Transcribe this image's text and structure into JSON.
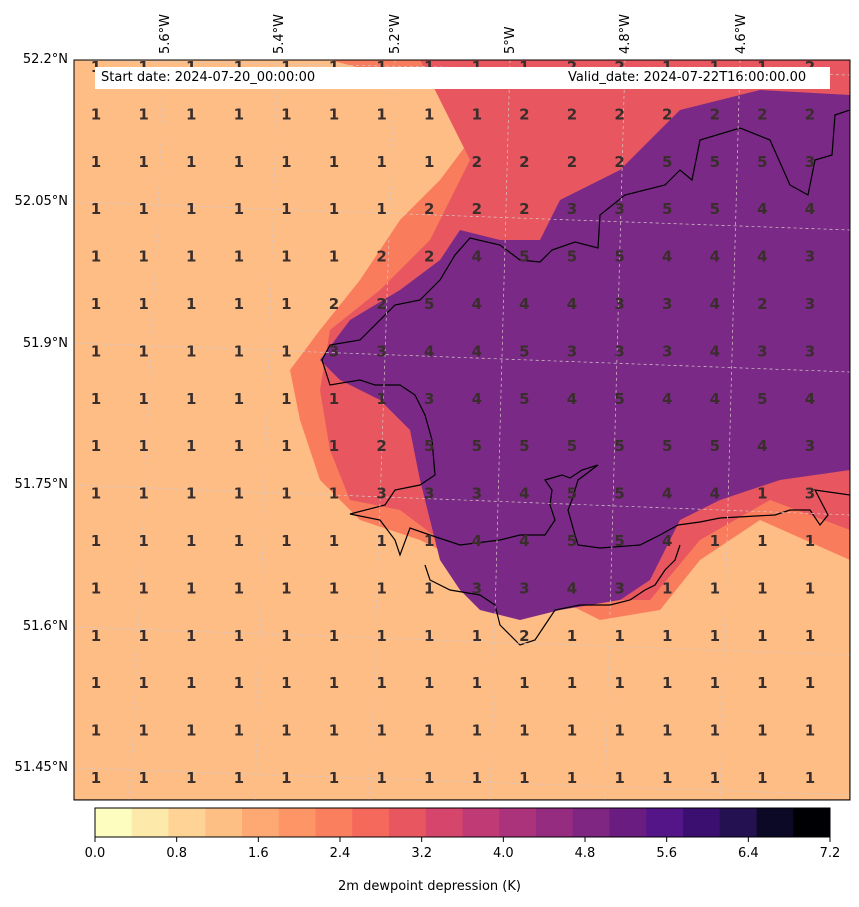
{
  "map": {
    "header": {
      "start_date": "Start date: 2024-07-20_00:00:00",
      "valid_date": "Valid_date: 2024-07-22T16:00:00.00"
    },
    "lon_labels": [
      "5.6°W",
      "5.4°W",
      "5.2°W",
      "5°W",
      "4.8°W",
      "4.6°W"
    ],
    "lat_labels": [
      "52.2°N",
      "52.05°N",
      "51.9°N",
      "51.75°N",
      "51.6°N",
      "51.45°N"
    ],
    "grid_values": [
      [
        "1",
        "1",
        "1",
        "1",
        "1",
        "1",
        "1",
        "1",
        "1",
        "1",
        "2",
        "2",
        "1",
        "1",
        "1",
        "2"
      ],
      [
        "1",
        "1",
        "1",
        "1",
        "1",
        "1",
        "1",
        "1",
        "1",
        "2",
        "2",
        "2",
        "2",
        "2",
        "2",
        "2"
      ],
      [
        "1",
        "1",
        "1",
        "1",
        "1",
        "1",
        "1",
        "1",
        "2",
        "2",
        "2",
        "2",
        "5",
        "5",
        "5",
        "3"
      ],
      [
        "1",
        "1",
        "1",
        "1",
        "1",
        "1",
        "1",
        "2",
        "2",
        "2",
        "3",
        "3",
        "5",
        "5",
        "4",
        "4"
      ],
      [
        "1",
        "1",
        "1",
        "1",
        "1",
        "1",
        "2",
        "2",
        "4",
        "5",
        "5",
        "5",
        "4",
        "4",
        "4",
        "3"
      ],
      [
        "1",
        "1",
        "1",
        "1",
        "1",
        "2",
        "2",
        "5",
        "4",
        "4",
        "4",
        "3",
        "3",
        "4",
        "2",
        "3"
      ],
      [
        "1",
        "1",
        "1",
        "1",
        "1",
        "3",
        "3",
        "4",
        "4",
        "5",
        "3",
        "3",
        "3",
        "4",
        "3",
        "3"
      ],
      [
        "1",
        "1",
        "1",
        "1",
        "1",
        "1",
        "1",
        "3",
        "4",
        "5",
        "4",
        "5",
        "4",
        "4",
        "5",
        "4"
      ],
      [
        "1",
        "1",
        "1",
        "1",
        "1",
        "1",
        "2",
        "5",
        "5",
        "5",
        "5",
        "5",
        "5",
        "5",
        "4",
        "3"
      ],
      [
        "1",
        "1",
        "1",
        "1",
        "1",
        "1",
        "3",
        "3",
        "3",
        "4",
        "5",
        "5",
        "4",
        "4",
        "1",
        "3"
      ],
      [
        "1",
        "1",
        "1",
        "1",
        "1",
        "1",
        "1",
        "1",
        "4",
        "4",
        "5",
        "5",
        "4",
        "1",
        "1",
        "1"
      ],
      [
        "1",
        "1",
        "1",
        "1",
        "1",
        "1",
        "1",
        "1",
        "3",
        "3",
        "4",
        "3",
        "1",
        "1",
        "1",
        "1"
      ],
      [
        "1",
        "1",
        "1",
        "1",
        "1",
        "1",
        "1",
        "1",
        "1",
        "2",
        "1",
        "1",
        "1",
        "1",
        "1",
        "1"
      ],
      [
        "1",
        "1",
        "1",
        "1",
        "1",
        "1",
        "1",
        "1",
        "1",
        "1",
        "1",
        "1",
        "1",
        "1",
        "1",
        "1"
      ],
      [
        "1",
        "1",
        "1",
        "1",
        "1",
        "1",
        "1",
        "1",
        "1",
        "1",
        "1",
        "1",
        "1",
        "1",
        "1",
        "1"
      ],
      [
        "1",
        "1",
        "1",
        "1",
        "1",
        "1",
        "1",
        "1",
        "1",
        "1",
        "1",
        "1",
        "1",
        "1",
        "1",
        "1"
      ]
    ],
    "colorbar": {
      "ticks": [
        "0.0",
        "0.8",
        "1.6",
        "2.4",
        "3.2",
        "4.0",
        "4.8",
        "5.6",
        "6.4",
        "7.2"
      ],
      "title": "2m dewpoint depression (K)",
      "colors": [
        "#fcfdbf",
        "#fde9a9",
        "#fed395",
        "#febf84",
        "#fea973",
        "#fd9567",
        "#fa7f5e",
        "#f4695c",
        "#e8575f",
        "#d6456c",
        "#c03a76",
        "#ab337c",
        "#952c80",
        "#7f2582",
        "#6a1c81",
        "#541589",
        "#3b0f70",
        "#231151",
        "#0c0926",
        "#000004"
      ]
    },
    "fill_colors": {
      "base": "#fdbd85",
      "light": "#fed395",
      "mid": "#f97c5d",
      "deep": "#7a2a86",
      "hot": "#e8575f"
    }
  }
}
